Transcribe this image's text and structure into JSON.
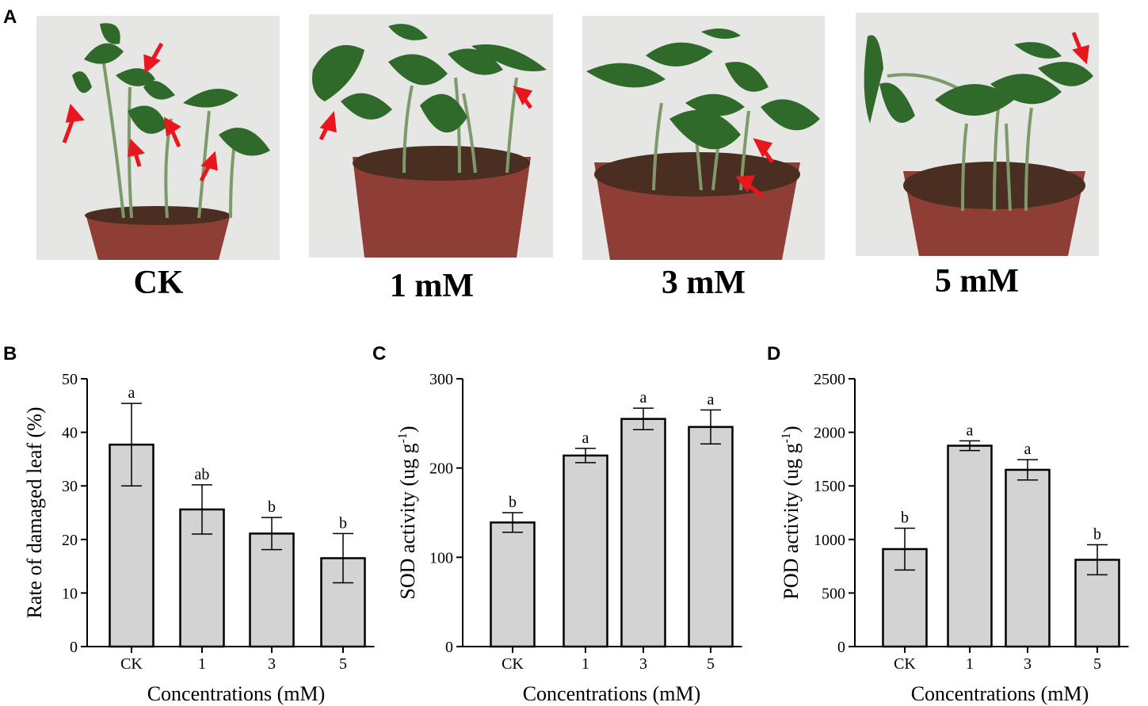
{
  "panels": {
    "a": "A",
    "b": "B",
    "c": "C",
    "d": "D"
  },
  "photos": [
    {
      "label": "CK"
    },
    {
      "label": "1 mM"
    },
    {
      "label": "3 mM"
    },
    {
      "label": "5 mM"
    }
  ],
  "colors": {
    "bar_fill": "#d3d3d3",
    "bar_stroke": "#000000",
    "arrow": "#e8171d",
    "pot": "#8e3e34",
    "soil": "#4a2e22",
    "leaf": "#2f6a2a",
    "stem": "#7e9a6a",
    "backdrop": "#e6e6e4"
  },
  "chart_data": [
    {
      "type": "bar",
      "categories": [
        "CK",
        "1",
        "3",
        "5"
      ],
      "values": [
        37.7,
        25.6,
        21.1,
        16.5
      ],
      "errors": [
        7.7,
        4.6,
        3.0,
        4.6
      ],
      "significance": [
        "a",
        "ab",
        "b",
        "b"
      ],
      "xlabel": "Concentrations (mM)",
      "ylabel": "Rate of damaged leaf  (%)",
      "ylim": [
        0,
        50
      ],
      "yticks": [
        "0",
        "10",
        "20",
        "30",
        "40",
        "50"
      ]
    },
    {
      "type": "bar",
      "categories": [
        "CK",
        "1",
        "3",
        "5"
      ],
      "values": [
        139,
        214,
        255,
        246
      ],
      "errors": [
        11,
        8,
        12,
        19
      ],
      "significance": [
        "b",
        "a",
        "a",
        "a"
      ],
      "xlabel": "Concentrations (mM)",
      "ylabel": "SOD activity  (ug g",
      "ylabel_sup": "-1",
      "ylabel_end": ")",
      "ylim": [
        0,
        300
      ],
      "yticks": [
        "0",
        "100",
        "200",
        "300"
      ]
    },
    {
      "type": "bar",
      "categories": [
        "CK",
        "1",
        "3",
        "5"
      ],
      "values": [
        910,
        1875,
        1650,
        810
      ],
      "errors": [
        195,
        45,
        95,
        140
      ],
      "significance": [
        "b",
        "a",
        "a",
        "b"
      ],
      "xlabel": "Concentrations (mM)",
      "ylabel": "POD activity  (ug g",
      "ylabel_sup": "-1",
      "ylabel_end": ")",
      "ylim": [
        0,
        2500
      ],
      "yticks": [
        "0",
        "500",
        "1000",
        "1500",
        "2000",
        "2500"
      ]
    }
  ]
}
